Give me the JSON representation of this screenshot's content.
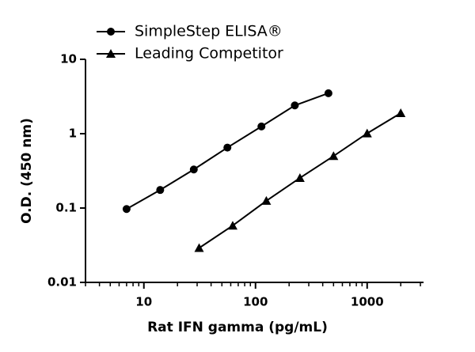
{
  "chart_data": {
    "type": "line",
    "x_label": "Rat IFN gamma (pg/mL)",
    "y_label": "O.D. (450 nm)",
    "xscale": "log",
    "yscale": "log",
    "xlim": [
      3,
      3200
    ],
    "ylim": [
      0.01,
      10
    ],
    "xticks": [
      10,
      100,
      1000
    ],
    "yticks": [
      0.01,
      0.1,
      1,
      10
    ],
    "x_minor_ticks": true,
    "legend": "top-left",
    "series": [
      {
        "name": "SimpleStep ELISA®",
        "color": "#000000",
        "marker": "circle",
        "x": [
          7,
          14,
          28,
          56,
          113,
          225,
          450
        ],
        "values": [
          0.097,
          0.175,
          0.33,
          0.65,
          1.25,
          2.4,
          3.5
        ]
      },
      {
        "name": "Leading Competitor",
        "color": "#000000",
        "marker": "triangle",
        "x": [
          31.25,
          62.5,
          125,
          250,
          500,
          1000,
          2000
        ],
        "values": [
          0.029,
          0.058,
          0.125,
          0.254,
          0.5,
          1.01,
          1.89
        ]
      }
    ]
  }
}
